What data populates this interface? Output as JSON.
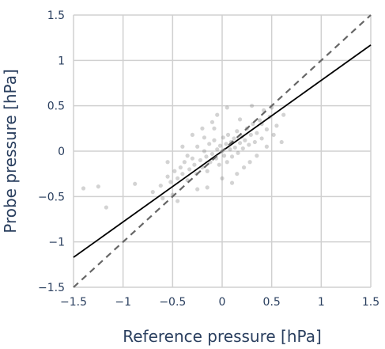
{
  "chart_data": {
    "type": "scatter",
    "title": "",
    "xlabel": "Reference pressure [hPa]",
    "ylabel": "Probe pressure [hPa]",
    "xlim": [
      -1.5,
      1.5
    ],
    "ylim": [
      -1.5,
      1.5
    ],
    "xticks": [
      -1.5,
      -1,
      -0.5,
      0,
      0.5,
      1,
      1.5
    ],
    "yticks": [
      -1.5,
      -1,
      -0.5,
      0,
      0.5,
      1,
      1.5
    ],
    "xtick_labels": [
      "−1.5",
      "−1",
      "−0.5",
      "0",
      "0.5",
      "1",
      "1.5"
    ],
    "ytick_labels": [
      "−1.5",
      "−1",
      "−0.5",
      "0",
      "0.5",
      "1",
      "1.5"
    ],
    "grid": true,
    "colors": {
      "points": "#808080",
      "fit_line": "#000000",
      "identity_line": "#666666",
      "grid": "#d0d0d0",
      "text": "#2a3f5f"
    },
    "series": [
      {
        "kind": "scatter",
        "points": [
          [
            -1.4,
            -0.41
          ],
          [
            -1.25,
            -0.39
          ],
          [
            -1.17,
            -0.62
          ],
          [
            -0.88,
            -0.36
          ],
          [
            -0.7,
            -0.45
          ],
          [
            -0.62,
            -0.38
          ],
          [
            -0.55,
            -0.28
          ],
          [
            -0.52,
            -0.34
          ],
          [
            -0.5,
            -0.48
          ],
          [
            -0.48,
            -0.22
          ],
          [
            -0.45,
            -0.3
          ],
          [
            -0.42,
            -0.18
          ],
          [
            -0.4,
            -0.25
          ],
          [
            -0.38,
            -0.12
          ],
          [
            -0.35,
            -0.32
          ],
          [
            -0.33,
            -0.2
          ],
          [
            -0.3,
            -0.08
          ],
          [
            -0.28,
            -0.15
          ],
          [
            -0.26,
            -0.25
          ],
          [
            -0.25,
            0.05
          ],
          [
            -0.22,
            -0.1
          ],
          [
            -0.2,
            -0.18
          ],
          [
            -0.18,
            0.0
          ],
          [
            -0.16,
            -0.06
          ],
          [
            -0.15,
            -0.22
          ],
          [
            -0.13,
            0.08
          ],
          [
            -0.12,
            -0.12
          ],
          [
            -0.1,
            -0.03
          ],
          [
            -0.08,
            0.12
          ],
          [
            -0.06,
            -0.08
          ],
          [
            -0.05,
            0.02
          ],
          [
            -0.03,
            -0.15
          ],
          [
            -0.02,
            0.06
          ],
          [
            0.0,
            0.0
          ],
          [
            0.01,
            0.15
          ],
          [
            0.02,
            -0.05
          ],
          [
            0.04,
            0.08
          ],
          [
            0.05,
            -0.12
          ],
          [
            0.06,
            0.18
          ],
          [
            0.08,
            0.02
          ],
          [
            0.09,
            0.1
          ],
          [
            0.1,
            -0.06
          ],
          [
            0.12,
            0.14
          ],
          [
            0.13,
            0.04
          ],
          [
            0.15,
            0.22
          ],
          [
            0.16,
            -0.02
          ],
          [
            0.18,
            0.09
          ],
          [
            0.2,
            0.16
          ],
          [
            0.21,
            0.03
          ],
          [
            0.23,
            0.12
          ],
          [
            0.25,
            0.25
          ],
          [
            0.27,
            0.07
          ],
          [
            0.29,
            0.18
          ],
          [
            0.31,
            0.3
          ],
          [
            0.33,
            0.1
          ],
          [
            0.35,
            0.2
          ],
          [
            0.38,
            0.34
          ],
          [
            0.4,
            0.14
          ],
          [
            0.42,
            0.45
          ],
          [
            0.45,
            0.24
          ],
          [
            0.48,
            0.38
          ],
          [
            0.52,
            0.18
          ],
          [
            0.55,
            0.28
          ],
          [
            0.6,
            0.1
          ],
          [
            0.62,
            0.4
          ],
          [
            0.05,
            0.48
          ],
          [
            -0.05,
            0.4
          ],
          [
            -0.2,
            0.25
          ],
          [
            0.3,
            0.5
          ],
          [
            -0.1,
            0.32
          ],
          [
            0.15,
            -0.25
          ],
          [
            -0.3,
            0.18
          ],
          [
            0.22,
            -0.18
          ],
          [
            -0.4,
            0.05
          ],
          [
            0.35,
            -0.05
          ],
          [
            -0.55,
            -0.12
          ],
          [
            -0.6,
            -0.52
          ],
          [
            -0.45,
            -0.55
          ],
          [
            -0.15,
            -0.4
          ],
          [
            0.1,
            -0.35
          ],
          [
            0.0,
            -0.3
          ],
          [
            -0.25,
            -0.42
          ],
          [
            0.28,
            -0.12
          ],
          [
            0.45,
            0.05
          ],
          [
            0.5,
            0.48
          ],
          [
            -0.08,
            0.25
          ],
          [
            0.18,
            0.35
          ],
          [
            -0.35,
            -0.05
          ],
          [
            0.4,
            0.3
          ],
          [
            -0.18,
            0.15
          ]
        ]
      },
      {
        "kind": "line",
        "style": "solid",
        "from": [
          -1.5,
          -1.17
        ],
        "to": [
          1.5,
          1.17
        ]
      },
      {
        "kind": "line",
        "style": "dashed",
        "from": [
          -1.5,
          -1.5
        ],
        "to": [
          1.5,
          1.5
        ]
      }
    ]
  }
}
